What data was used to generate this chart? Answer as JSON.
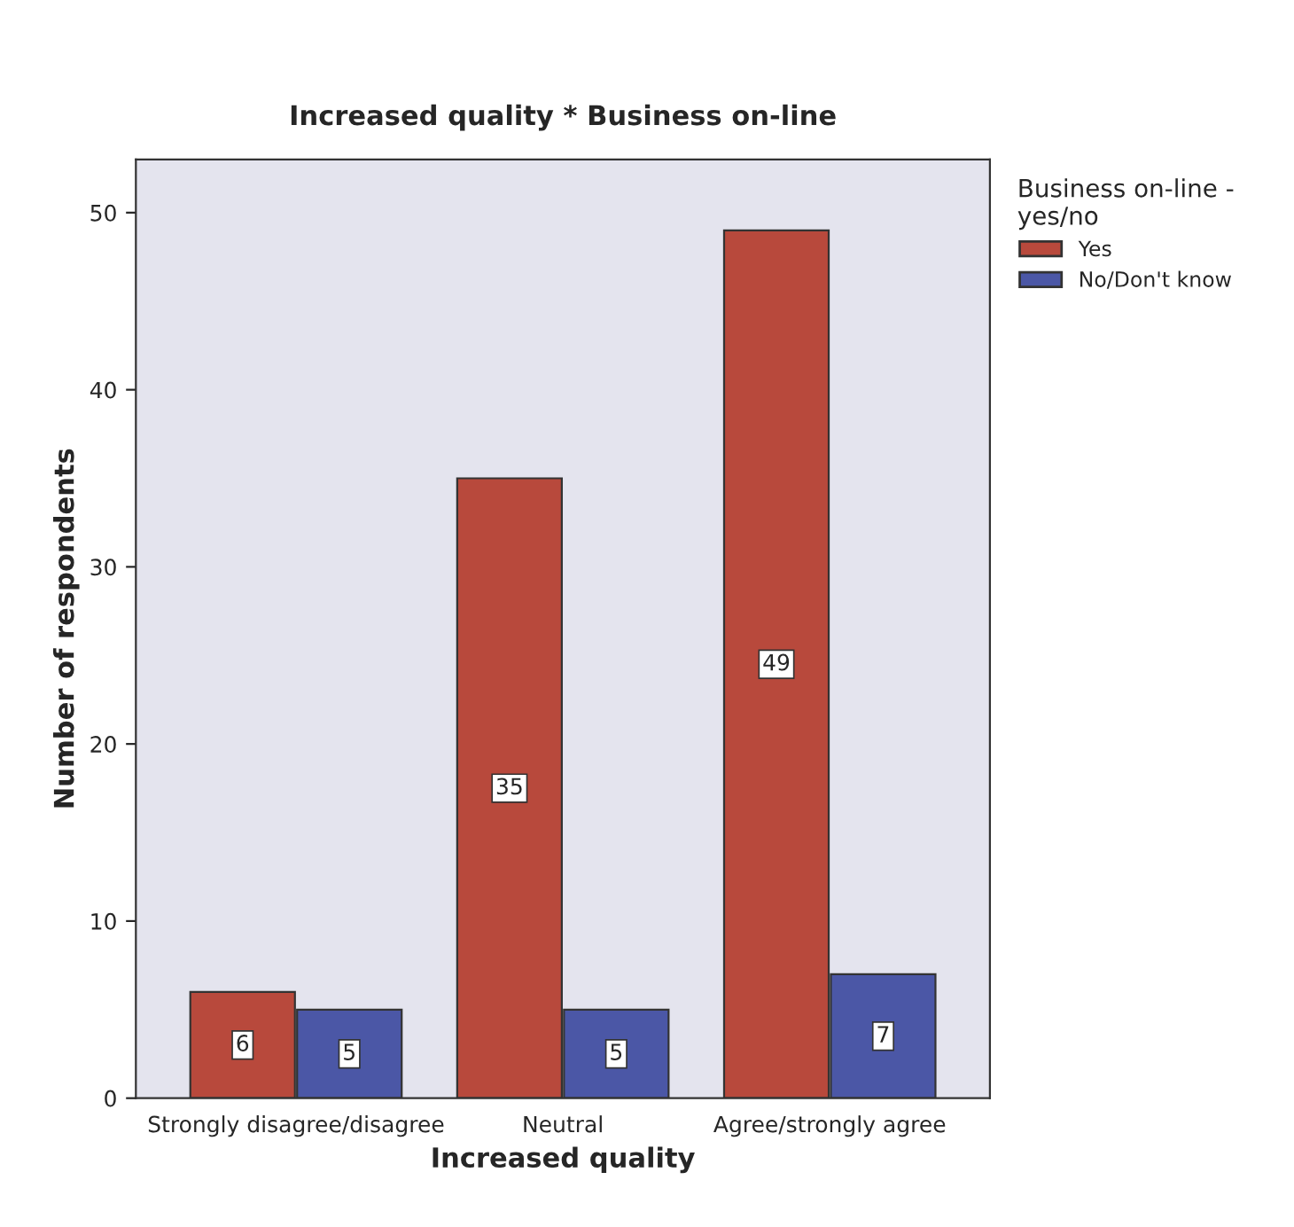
{
  "chart_data": {
    "type": "bar",
    "title": "Increased quality * Business on-line",
    "xlabel": "Increased quality",
    "ylabel": "Number of respondents",
    "legend_title": "Business on-line -\nyes/no",
    "categories": [
      "Strongly disagree/disagree",
      "Neutral",
      "Agree/strongly agree"
    ],
    "series": [
      {
        "name": "Yes",
        "color": "#b8493c",
        "values": [
          6,
          35,
          49
        ]
      },
      {
        "name": "No/Don't know",
        "color": "#4b57a6",
        "values": [
          5,
          5,
          7
        ]
      }
    ],
    "ylim": [
      0,
      53
    ],
    "yticks": [
      0,
      10,
      20,
      30,
      40,
      50
    ],
    "grid": false,
    "legend": "right",
    "data_labels": true
  }
}
